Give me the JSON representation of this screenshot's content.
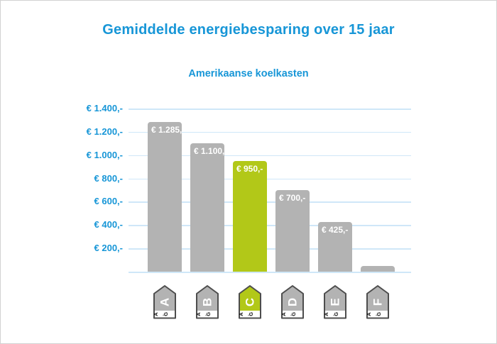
{
  "chart_data": {
    "type": "bar",
    "title": "Gemiddelde energiebesparing over 15 jaar",
    "subtitle": "Amerikaanse koelkasten",
    "categories": [
      "A",
      "B",
      "C",
      "D",
      "E",
      "F"
    ],
    "values": [
      1285,
      1100,
      950,
      700,
      425,
      50
    ],
    "bar_labels": [
      "€ 1.285,-",
      "€ 1.100,-",
      "€ 950,-",
      "€ 700,-",
      "€ 425,-",
      ""
    ],
    "bar_colors": [
      "#b3b3b3",
      "#b3b3b3",
      "#b2c818",
      "#b3b3b3",
      "#b3b3b3",
      "#b3b3b3"
    ],
    "y_ticks": [
      "€ 1.400,-",
      "€ 1.200,-",
      "€ 1.000,-",
      "€ 800,-",
      "€ 600,-",
      "€ 400,-",
      "€ 200,-"
    ],
    "y_tick_values": [
      1400,
      1200,
      1000,
      800,
      600,
      400,
      200
    ],
    "ylim": [
      0,
      1400
    ],
    "xlabel": "",
    "ylabel": "",
    "grid": true,
    "legend_position": "none",
    "energy_scale_text": "A←G",
    "colors": {
      "title": "#1796d7",
      "subtitle": "#1796d7",
      "axis_label": "#1796d7",
      "gridline": "#cfe7f8",
      "bar_default": "#b3b3b3",
      "bar_highlight": "#b2c818",
      "bar_label_text": "#ffffff",
      "icon_border": "#4d4d4d",
      "icon_letter": "#ffffff",
      "icon_scale_text": "#1a1a1a",
      "background": "#ffffff",
      "page_border": "#d2d2d2"
    }
  }
}
